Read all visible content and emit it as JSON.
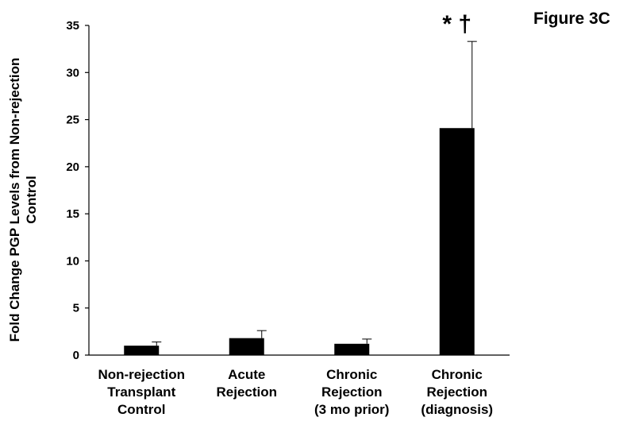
{
  "figure_label": "Figure 3C",
  "chart_data": {
    "type": "bar",
    "categories": [
      [
        "Non-rejection",
        "Transplant",
        "Control"
      ],
      [
        "Acute",
        "Rejection"
      ],
      [
        "Chronic",
        "Rejection",
        "(3 mo prior)"
      ],
      [
        "Chronic",
        "Rejection",
        "(diagnosis)"
      ]
    ],
    "values": [
      1.0,
      1.8,
      1.2,
      24.1
    ],
    "error_upper": [
      0.4,
      0.8,
      0.5,
      9.2
    ],
    "annotations": [
      {
        "category_index": 3,
        "text": "* †"
      }
    ],
    "ylabel_lines": [
      "Fold Change PGP Levels from Non-rejection",
      "Control"
    ],
    "xlabel": "",
    "ylim": [
      0,
      35
    ],
    "yticks": [
      0,
      5,
      10,
      15,
      20,
      25,
      30,
      35
    ],
    "grid": false,
    "bar_color": "#000000"
  }
}
